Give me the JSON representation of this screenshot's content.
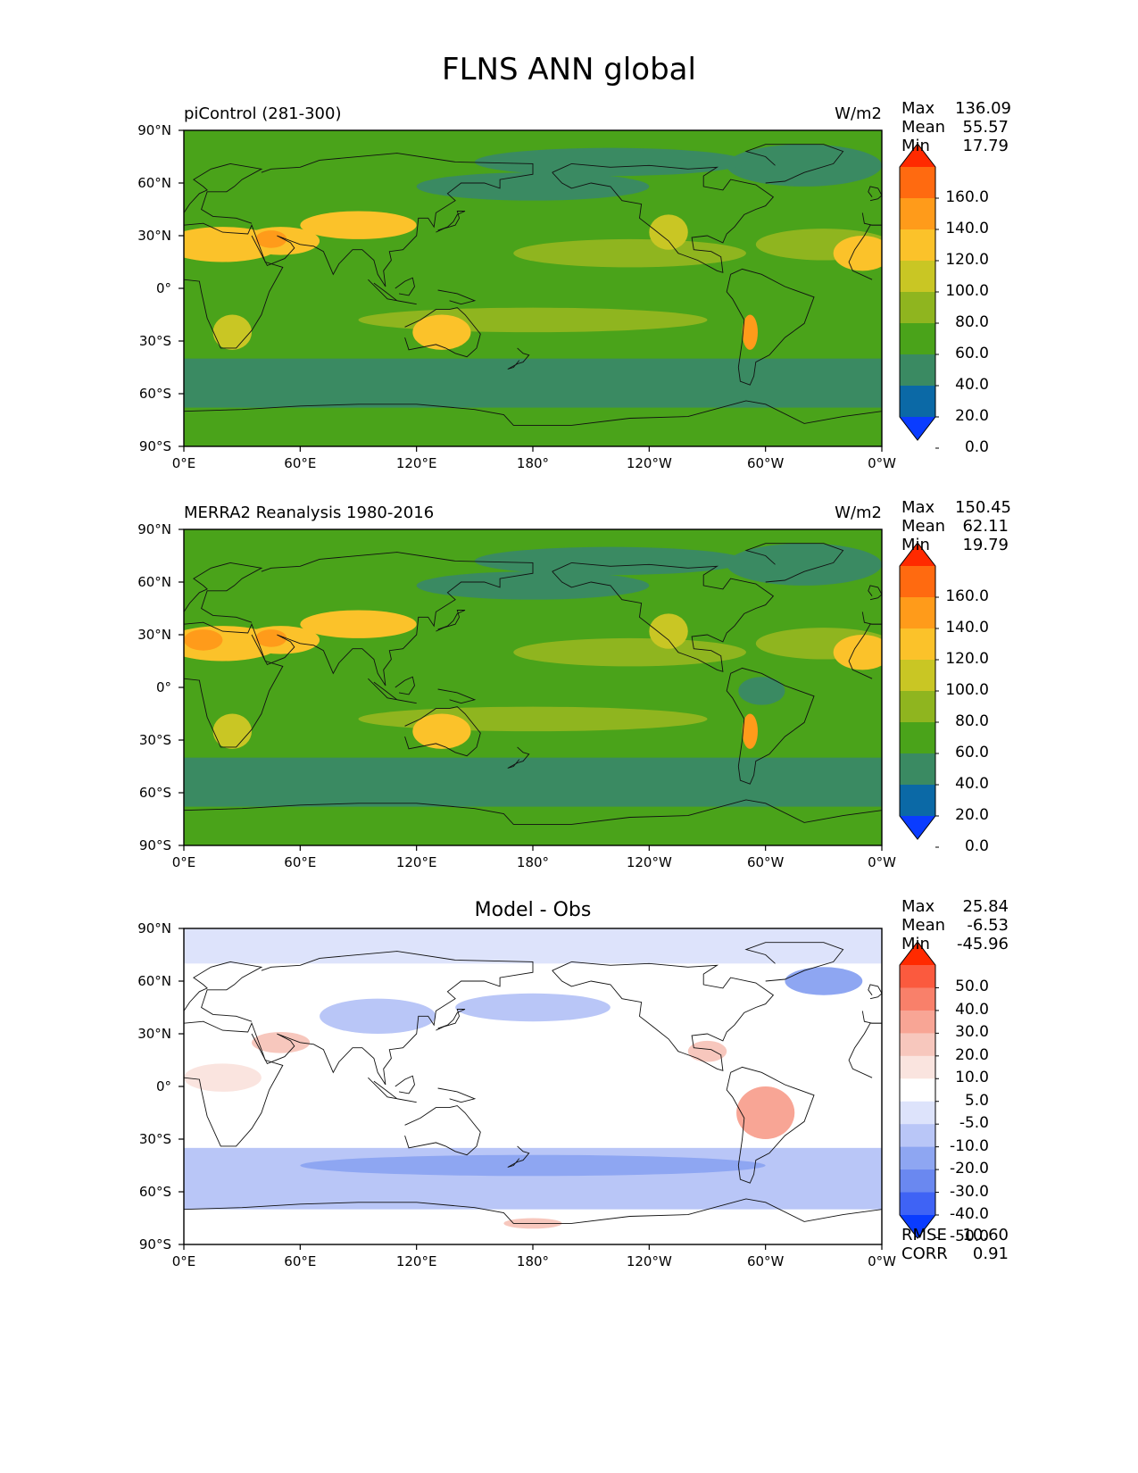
{
  "title": "FLNS ANN global",
  "axes": {
    "lat_ticks": [
      "90°N",
      "60°N",
      "30°N",
      "0°",
      "30°S",
      "60°S",
      "90°S"
    ],
    "lon_ticks": [
      "0°E",
      "60°E",
      "120°E",
      "180°",
      "120°W",
      "60°W",
      "0°W"
    ]
  },
  "panels": [
    {
      "title_left": "piControl (281-300)",
      "title_center": "",
      "units": "W/m2",
      "stats": [
        {
          "label": "Max",
          "value": "136.09"
        },
        {
          "label": "Mean",
          "value": "55.57"
        },
        {
          "label": "Min",
          "value": "17.79"
        }
      ],
      "colorbar": {
        "labels": [
          "160.0",
          "140.0",
          "120.0",
          "100.0",
          "80.0",
          "60.0",
          "40.0",
          "20.0",
          "0.0"
        ],
        "colors": [
          "#ff2a00",
          "#ff6a10",
          "#ff9b1a",
          "#fbc22a",
          "#c9c624",
          "#8fb51f",
          "#4aa31a",
          "#3a8a62",
          "#0b69a6",
          "#0a3cff"
        ]
      }
    },
    {
      "title_left": "MERRA2 Reanalysis 1980-2016",
      "title_center": "",
      "units": "W/m2",
      "stats": [
        {
          "label": "Max",
          "value": "150.45"
        },
        {
          "label": "Mean",
          "value": "62.11"
        },
        {
          "label": "Min",
          "value": "19.79"
        }
      ],
      "colorbar": {
        "labels": [
          "160.0",
          "140.0",
          "120.0",
          "100.0",
          "80.0",
          "60.0",
          "40.0",
          "20.0",
          "0.0"
        ],
        "colors": [
          "#ff2a00",
          "#ff6a10",
          "#ff9b1a",
          "#fbc22a",
          "#c9c624",
          "#8fb51f",
          "#4aa31a",
          "#3a8a62",
          "#0b69a6",
          "#0a3cff"
        ]
      }
    },
    {
      "title_left": "",
      "title_center": "Model - Obs",
      "units": "",
      "stats": [
        {
          "label": "Max",
          "value": "25.84"
        },
        {
          "label": "Mean",
          "value": "-6.53"
        },
        {
          "label": "Min",
          "value": "-45.96"
        }
      ],
      "colorbar": {
        "labels": [
          "50.0",
          "40.0",
          "30.0",
          "20.0",
          "10.0",
          "5.0",
          "-5.0",
          "-10.0",
          "-20.0",
          "-30.0",
          "-40.0",
          "-50.0"
        ],
        "colors": [
          "#ff2a00",
          "#fb5a3e",
          "#f9806a",
          "#f8a595",
          "#f7c7bd",
          "#fae4df",
          "#ffffff",
          "#dde3fb",
          "#b9c6f7",
          "#8ea6f2",
          "#6a88f0",
          "#3f63f5",
          "#0a3cff"
        ]
      },
      "extra_stats": [
        {
          "label": "RMSE",
          "value": "10.60"
        },
        {
          "label": "CORR",
          "value": "0.91"
        }
      ]
    }
  ]
}
